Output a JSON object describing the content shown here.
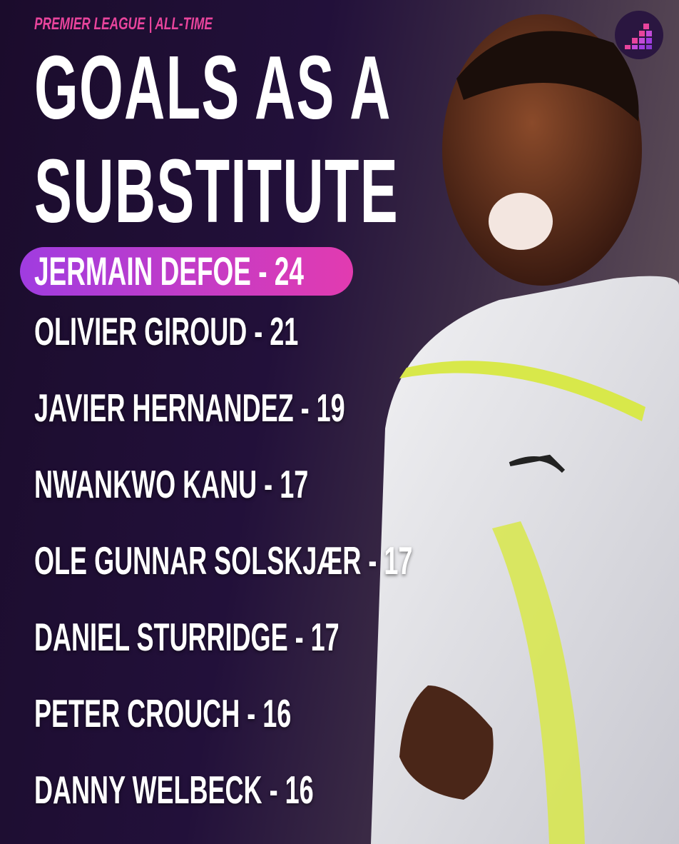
{
  "header": {
    "subtitle": "PREMIER LEAGUE | ALL-TIME",
    "title_line1": "GOALS AS A",
    "title_line2": "SUBSTITUTE"
  },
  "leader": {
    "label": "JERMAIN DEFOE - 24"
  },
  "list": [
    "OLIVIER GIROUD - 21",
    "JAVIER HERNANDEZ - 19",
    "NWANKWO KANU - 17",
    "OLE GUNNAR SOLSKJÆR - 17",
    "DANIEL STURRIDGE - 17",
    "PETER CROUCH - 16",
    "DANNY WELBECK - 16"
  ],
  "colors": {
    "accent_pink": "#e8449c",
    "pill_start": "#a03ce0",
    "pill_end": "#e23bb0",
    "background": "#1b0c2c"
  },
  "icons": {
    "logo": "bar-steps-logo-icon"
  }
}
